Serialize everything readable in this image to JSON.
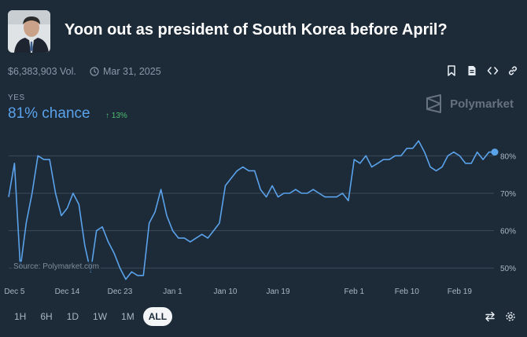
{
  "market": {
    "title": "Yoon out as president of South Korea before April?",
    "volume": "$6,383,903 Vol.",
    "end_date": "Mar 31, 2025"
  },
  "outcome": {
    "label": "YES",
    "chance": "81% chance",
    "change": "↑ 13%"
  },
  "brand": "Polymarket",
  "source": "Source: Polymarket.com",
  "time_ranges": [
    "1H",
    "6H",
    "1D",
    "1W",
    "1M",
    "ALL"
  ],
  "active_range": "ALL",
  "colors": {
    "background": "#1d2b39",
    "line": "#5aa2ea",
    "up": "#4cbc6d",
    "gridline": "#3a4a5a"
  },
  "icons": [
    "bookmark-icon",
    "document-icon",
    "embed-icon",
    "link-icon",
    "swap-icon",
    "settings-icon",
    "clock-icon"
  ],
  "chart_data": {
    "type": "line",
    "x_tick_labels": [
      "Dec 5",
      "Dec 14",
      "Dec 23",
      "Jan 1",
      "Jan 10",
      "Jan 19",
      "Feb 1",
      "Feb 10",
      "Feb 19"
    ],
    "y_tick_labels": [
      "50%",
      "60%",
      "70%",
      "80%"
    ],
    "ylim": [
      45,
      87
    ],
    "grid": true,
    "series": [
      {
        "x": [
          "Dec 4",
          "Dec 5",
          "Dec 6",
          "Dec 7",
          "Dec 8",
          "Dec 9",
          "Dec 10",
          "Dec 11",
          "Dec 12",
          "Dec 13",
          "Dec 14",
          "Dec 15",
          "Dec 16",
          "Dec 17",
          "Dec 18",
          "Dec 19",
          "Dec 20",
          "Dec 21",
          "Dec 22",
          "Dec 23",
          "Dec 24",
          "Dec 25",
          "Dec 26",
          "Dec 27",
          "Dec 28",
          "Dec 29",
          "Dec 30",
          "Dec 31",
          "Jan 1",
          "Jan 2",
          "Jan 3",
          "Jan 4",
          "Jan 5",
          "Jan 6",
          "Jan 7",
          "Jan 8",
          "Jan 9",
          "Jan 10",
          "Jan 11",
          "Jan 12",
          "Jan 13",
          "Jan 14",
          "Jan 15",
          "Jan 16",
          "Jan 17",
          "Jan 18",
          "Jan 19",
          "Jan 20",
          "Jan 21",
          "Jan 22",
          "Jan 23",
          "Jan 24",
          "Jan 25",
          "Jan 26",
          "Jan 27",
          "Jan 28",
          "Jan 29",
          "Jan 30",
          "Jan 31",
          "Feb 1",
          "Feb 2",
          "Feb 3",
          "Feb 4",
          "Feb 5",
          "Feb 6",
          "Feb 7",
          "Feb 8",
          "Feb 9",
          "Feb 10",
          "Feb 11",
          "Feb 12",
          "Feb 13",
          "Feb 14",
          "Feb 15",
          "Feb 16",
          "Feb 17",
          "Feb 18",
          "Feb 19",
          "Feb 20",
          "Feb 21",
          "Feb 22",
          "Feb 23",
          "Feb 24",
          "Feb 25"
        ],
        "values": [
          69,
          78,
          50,
          62,
          70,
          80,
          79,
          79,
          70,
          64,
          66,
          70,
          67,
          56,
          49,
          60,
          61,
          57,
          54,
          50,
          47,
          49,
          48,
          48,
          62,
          65,
          71,
          64,
          60,
          58,
          58,
          57,
          58,
          59,
          58,
          60,
          62,
          72,
          74,
          76,
          77,
          76,
          76,
          71,
          69,
          72,
          69,
          70,
          70,
          71,
          70,
          70,
          71,
          70,
          69,
          69,
          69,
          70,
          68,
          79,
          78,
          80,
          77,
          78,
          79,
          79,
          80,
          80,
          82,
          82,
          84,
          81,
          77,
          76,
          77,
          80,
          81,
          80,
          78,
          78,
          81,
          79,
          81,
          81
        ]
      }
    ]
  }
}
